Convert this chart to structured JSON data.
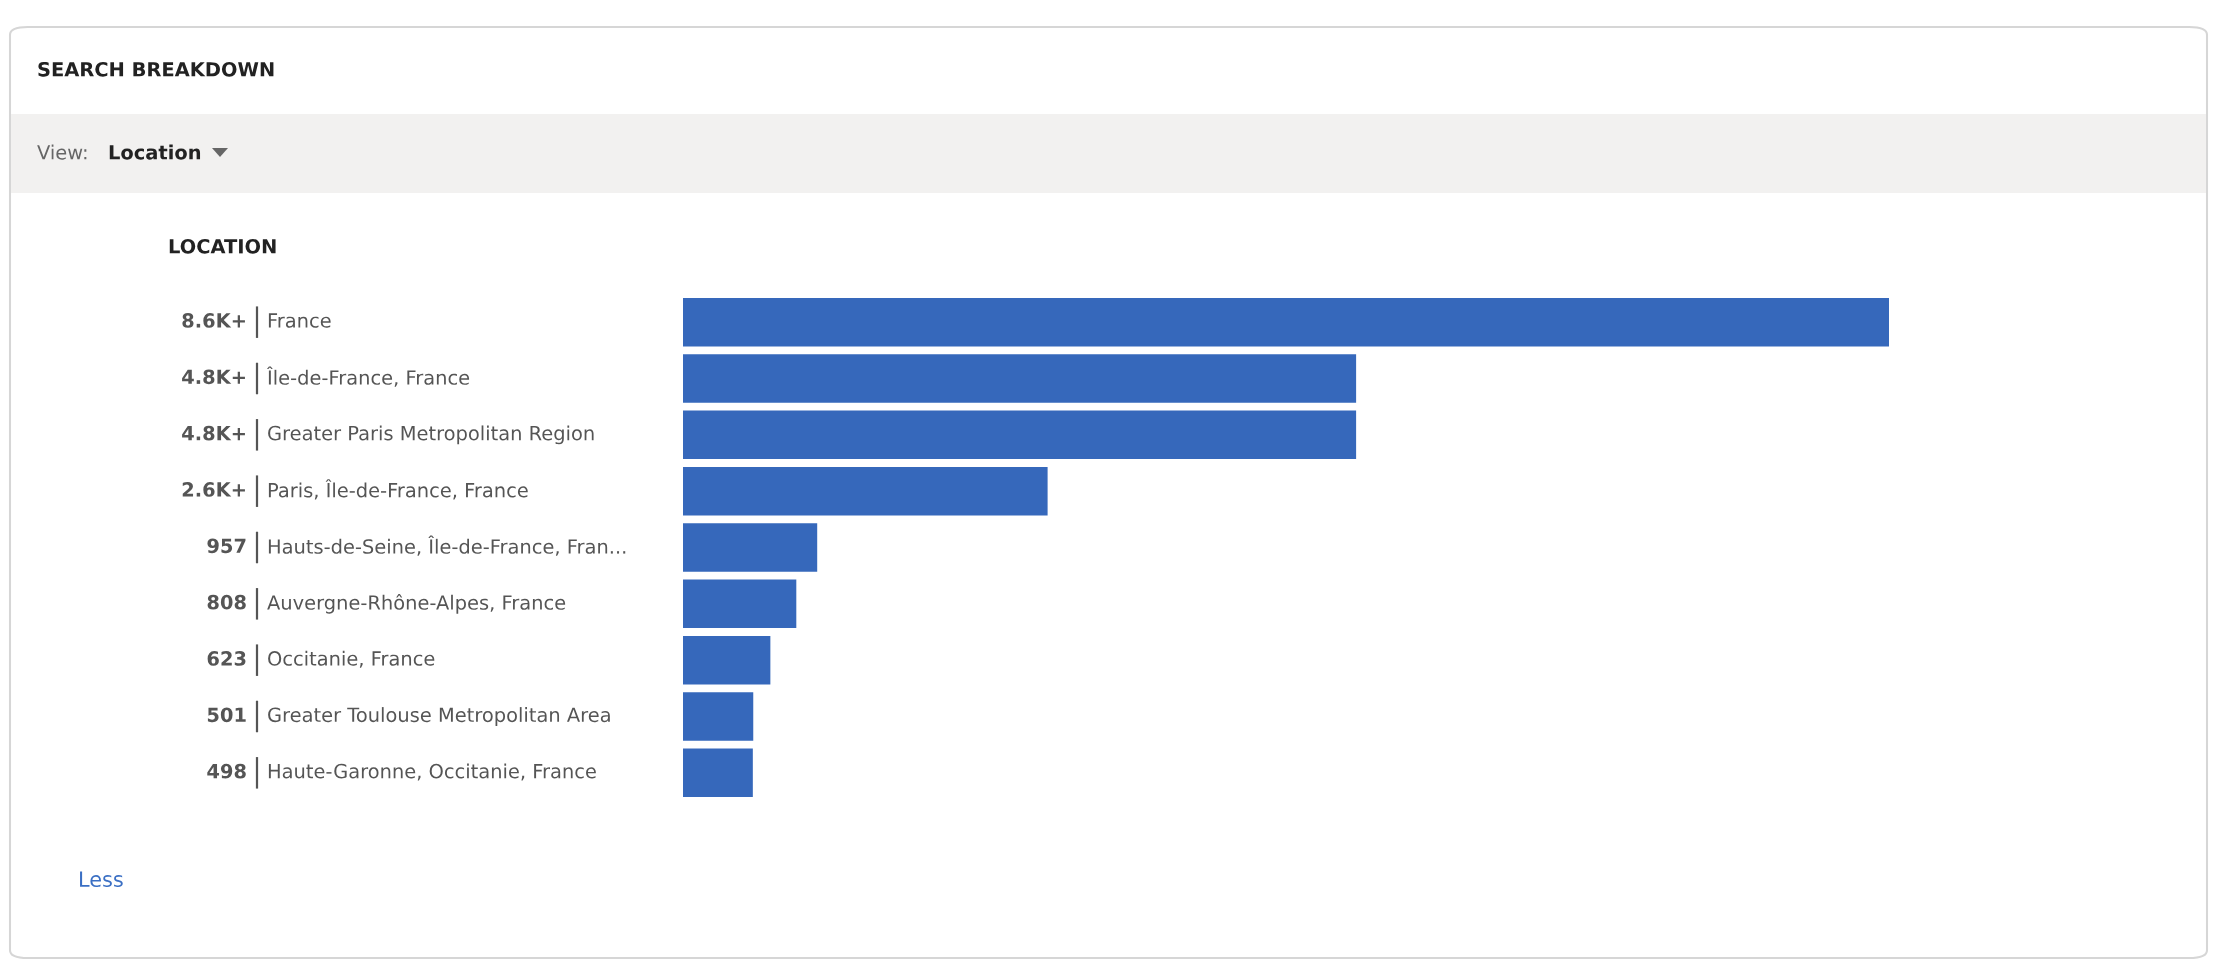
{
  "chart_data": {
    "type": "bar",
    "orientation": "horizontal",
    "title": "SEARCH BREAKDOWN",
    "subtitle": "LOCATION",
    "annotations": [
      "View:",
      "Location",
      "Less"
    ],
    "categories": [
      "France",
      "Île-de-France, France",
      "Greater Paris Metropolitan Region",
      "Paris, Île-de-France, France",
      "Hauts-de-Seine, Île-de-France, Fran...",
      "Auvergne-Rhône-Alpes, France",
      "Occitanie, France",
      "Greater Toulouse Metropolitan Area",
      "Haute-Garonne, Occitanie, France"
    ],
    "values": [
      8600,
      4800,
      4800,
      2600,
      957,
      808,
      623,
      501,
      498
    ],
    "value_labels": [
      "8.6K+",
      "4.8K+",
      "4.8K+",
      "2.6K+",
      "957",
      "808",
      "623",
      "501",
      "498"
    ],
    "color": "#3668bb",
    "legend": false
  }
}
